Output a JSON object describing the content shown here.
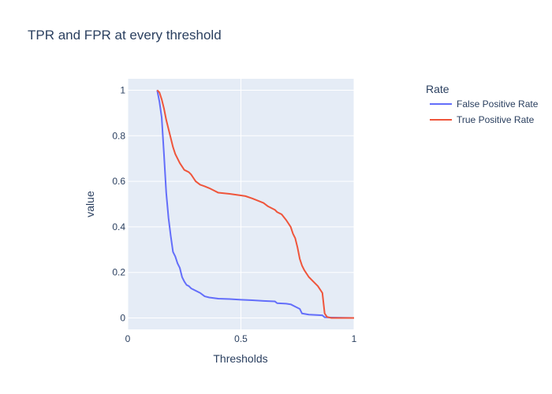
{
  "chart_data": {
    "type": "line",
    "title": "TPR and FPR at every threshold",
    "xlabel": "Thresholds",
    "ylabel": "value",
    "xlim": [
      0,
      1
    ],
    "ylim": [
      -0.05,
      1.05
    ],
    "x_ticks": [
      "0",
      "0.5",
      "1"
    ],
    "y_ticks": [
      "0",
      "0.2",
      "0.4",
      "0.6",
      "0.8",
      "1"
    ],
    "grid": true,
    "legend": {
      "title": "Rate",
      "placement": "right"
    },
    "series": [
      {
        "name": "False Positive Rate",
        "color": "#636efa",
        "x": [
          0.13,
          0.14,
          0.15,
          0.16,
          0.17,
          0.18,
          0.19,
          0.2,
          0.21,
          0.22,
          0.23,
          0.24,
          0.25,
          0.26,
          0.27,
          0.28,
          0.3,
          0.32,
          0.34,
          0.36,
          0.4,
          0.45,
          0.5,
          0.55,
          0.6,
          0.65,
          0.66,
          0.7,
          0.72,
          0.74,
          0.76,
          0.77,
          0.8,
          0.86,
          0.87,
          0.9,
          1.0
        ],
        "y": [
          1.0,
          0.95,
          0.88,
          0.72,
          0.55,
          0.44,
          0.36,
          0.29,
          0.27,
          0.24,
          0.22,
          0.18,
          0.16,
          0.145,
          0.14,
          0.13,
          0.12,
          0.11,
          0.095,
          0.09,
          0.085,
          0.083,
          0.08,
          0.078,
          0.075,
          0.073,
          0.065,
          0.063,
          0.06,
          0.05,
          0.04,
          0.02,
          0.015,
          0.012,
          0.003,
          0.002,
          0.0
        ]
      },
      {
        "name": "True Positive Rate",
        "color": "#ef553b",
        "x": [
          0.13,
          0.14,
          0.15,
          0.16,
          0.17,
          0.18,
          0.19,
          0.2,
          0.21,
          0.22,
          0.23,
          0.24,
          0.25,
          0.26,
          0.27,
          0.28,
          0.29,
          0.3,
          0.32,
          0.34,
          0.36,
          0.38,
          0.4,
          0.45,
          0.5,
          0.52,
          0.55,
          0.6,
          0.62,
          0.65,
          0.66,
          0.68,
          0.7,
          0.72,
          0.73,
          0.74,
          0.75,
          0.76,
          0.77,
          0.78,
          0.8,
          0.82,
          0.84,
          0.86,
          0.87,
          0.88,
          0.9,
          1.0
        ],
        "y": [
          1.0,
          0.99,
          0.96,
          0.92,
          0.87,
          0.83,
          0.79,
          0.75,
          0.72,
          0.7,
          0.68,
          0.665,
          0.65,
          0.645,
          0.64,
          0.63,
          0.615,
          0.6,
          0.585,
          0.578,
          0.57,
          0.56,
          0.55,
          0.545,
          0.538,
          0.535,
          0.525,
          0.505,
          0.49,
          0.475,
          0.465,
          0.455,
          0.43,
          0.4,
          0.37,
          0.35,
          0.31,
          0.26,
          0.23,
          0.21,
          0.18,
          0.16,
          0.14,
          0.11,
          0.02,
          0.005,
          0.0,
          0.0
        ]
      }
    ]
  }
}
